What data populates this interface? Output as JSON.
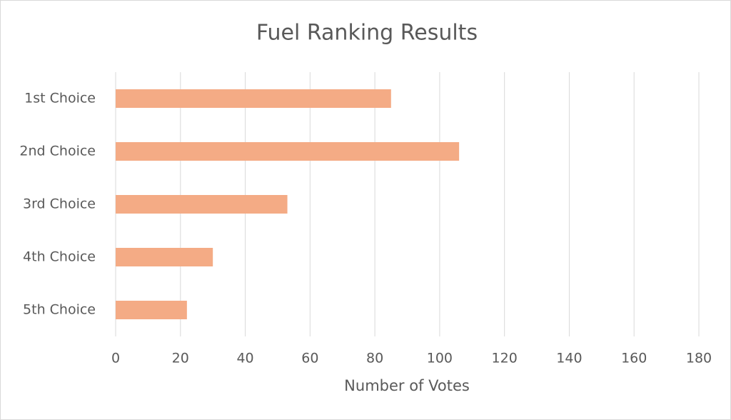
{
  "chart_data": {
    "type": "bar",
    "orientation": "horizontal",
    "title": "Fuel Ranking Results",
    "categories": [
      "1st Choice",
      "2nd Choice",
      "3rd Choice",
      "4th Choice",
      "5th Choice"
    ],
    "values": [
      85,
      106,
      53,
      30,
      22
    ],
    "color": "#f4ab85",
    "xlabel": "Number of Votes",
    "xlim": [
      0,
      180
    ],
    "xticks": [
      0,
      20,
      40,
      60,
      80,
      100,
      120,
      140,
      160,
      180
    ],
    "grid": true
  }
}
